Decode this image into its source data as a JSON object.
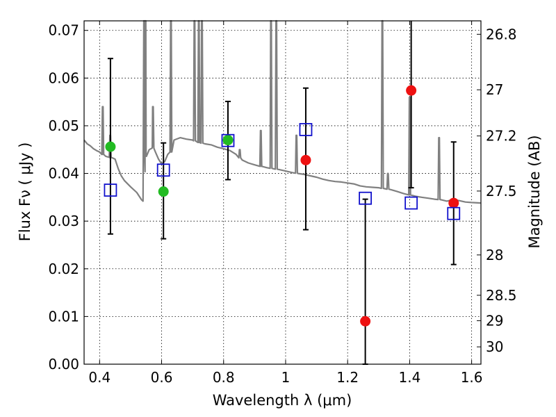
{
  "chart_data": {
    "type": "scatter",
    "xlabel": "Wavelength  λ (μm)",
    "ylabel": "Flux  Fν  ( μJy )",
    "ylabel_right": "Magnitude (AB)",
    "xlim": [
      0.35,
      1.63
    ],
    "ylim": [
      0.0,
      0.072
    ],
    "grid": true,
    "x_ticks": [
      0.4,
      0.6,
      0.8,
      1.0,
      1.2,
      1.4,
      1.6
    ],
    "x_tick_labels": [
      "0.4",
      "0.6",
      "0.8",
      "1",
      "1.2",
      "1.4",
      "1.6"
    ],
    "y_ticks": [
      0.0,
      0.01,
      0.02,
      0.03,
      0.04,
      0.05,
      0.06,
      0.07
    ],
    "y_tick_labels": [
      "0.00",
      "0.01",
      "0.02",
      "0.03",
      "0.04",
      "0.05",
      "0.06",
      "0.07"
    ],
    "right_ticks": [
      {
        "label": "26.8",
        "mag": 26.8
      },
      {
        "label": "27",
        "mag": 27.0
      },
      {
        "label": "27.2",
        "mag": 27.2
      },
      {
        "label": "27.5",
        "mag": 27.5
      },
      {
        "label": "28",
        "mag": 28.0
      },
      {
        "label": "28.5",
        "mag": 28.5
      },
      {
        "label": "29",
        "mag": 29.0
      },
      {
        "label": "30",
        "mag": 30.0
      }
    ],
    "series": [
      {
        "marker": "circle",
        "color": "#22bb22",
        "points": [
          {
            "x": 0.435,
            "y": 0.0456
          },
          {
            "x": 0.606,
            "y": 0.0362
          },
          {
            "x": 0.814,
            "y": 0.047
          }
        ]
      },
      {
        "marker": "circle",
        "color": "#ee1111",
        "points": [
          {
            "x": 1.065,
            "y": 0.0428
          },
          {
            "x": 1.257,
            "y": 0.009
          },
          {
            "x": 1.405,
            "y": 0.0574
          },
          {
            "x": 1.542,
            "y": 0.0338
          }
        ]
      },
      {
        "marker": "open-square",
        "color": "#1111cc",
        "points": [
          {
            "x": 0.435,
            "y": 0.0365
          },
          {
            "x": 0.606,
            "y": 0.0407
          },
          {
            "x": 0.814,
            "y": 0.0469
          },
          {
            "x": 1.065,
            "y": 0.0492
          },
          {
            "x": 1.257,
            "y": 0.0348
          },
          {
            "x": 1.405,
            "y": 0.0338
          },
          {
            "x": 1.542,
            "y": 0.0316
          }
        ]
      }
    ],
    "error_bars": [
      {
        "x": 0.435,
        "low": 0.0273,
        "high": 0.0641
      },
      {
        "x": 0.606,
        "low": 0.0263,
        "high": 0.0464
      },
      {
        "x": 0.814,
        "low": 0.0387,
        "high": 0.0551
      },
      {
        "x": 1.065,
        "low": 0.0282,
        "high": 0.0579
      },
      {
        "x": 1.257,
        "low": 0.0,
        "high": 0.0346
      },
      {
        "x": 1.405,
        "low": 0.037,
        "high": 0.072
      },
      {
        "x": 1.542,
        "low": 0.0209,
        "high": 0.0466
      }
    ],
    "model_spectrum": {
      "color": "#808080",
      "points": [
        [
          0.35,
          0.047
        ],
        [
          0.36,
          0.0462
        ],
        [
          0.37,
          0.0458
        ],
        [
          0.38,
          0.0452
        ],
        [
          0.39,
          0.0448
        ],
        [
          0.4,
          0.0445
        ],
        [
          0.41,
          0.044
        ],
        [
          0.42,
          0.0436
        ],
        [
          0.43,
          0.0434
        ],
        [
          0.44,
          0.0433
        ],
        [
          0.45,
          0.043
        ],
        [
          0.46,
          0.041
        ],
        [
          0.47,
          0.0395
        ],
        [
          0.48,
          0.0385
        ],
        [
          0.5,
          0.0372
        ],
        [
          0.52,
          0.036
        ],
        [
          0.53,
          0.035
        ],
        [
          0.535,
          0.0345
        ],
        [
          0.54,
          0.0342
        ],
        [
          0.545,
          0.043
        ],
        [
          0.55,
          0.044
        ],
        [
          0.56,
          0.045
        ],
        [
          0.57,
          0.0455
        ],
        [
          0.58,
          0.0445
        ],
        [
          0.59,
          0.043
        ],
        [
          0.6,
          0.042
        ],
        [
          0.61,
          0.0425
        ],
        [
          0.62,
          0.044
        ],
        [
          0.63,
          0.0445
        ],
        [
          0.64,
          0.047
        ],
        [
          0.66,
          0.0475
        ],
        [
          0.68,
          0.0472
        ],
        [
          0.7,
          0.047
        ],
        [
          0.72,
          0.0465
        ],
        [
          0.74,
          0.0462
        ],
        [
          0.76,
          0.046
        ],
        [
          0.78,
          0.0455
        ],
        [
          0.8,
          0.0452
        ],
        [
          0.82,
          0.0448
        ],
        [
          0.84,
          0.044
        ],
        [
          0.86,
          0.0428
        ],
        [
          0.88,
          0.0422
        ],
        [
          0.9,
          0.0418
        ],
        [
          0.92,
          0.0415
        ],
        [
          0.94,
          0.0412
        ],
        [
          0.96,
          0.041
        ],
        [
          0.98,
          0.0408
        ],
        [
          1.0,
          0.0405
        ],
        [
          1.02,
          0.0402
        ],
        [
          1.04,
          0.04
        ],
        [
          1.06,
          0.0398
        ],
        [
          1.08,
          0.0395
        ],
        [
          1.1,
          0.0392
        ],
        [
          1.12,
          0.0388
        ],
        [
          1.14,
          0.0385
        ],
        [
          1.16,
          0.0383
        ],
        [
          1.18,
          0.0382
        ],
        [
          1.2,
          0.038
        ],
        [
          1.22,
          0.0378
        ],
        [
          1.24,
          0.0374
        ],
        [
          1.26,
          0.0372
        ],
        [
          1.28,
          0.0371
        ],
        [
          1.3,
          0.037
        ],
        [
          1.32,
          0.0368
        ],
        [
          1.34,
          0.0366
        ],
        [
          1.36,
          0.0362
        ],
        [
          1.38,
          0.0358
        ],
        [
          1.4,
          0.0355
        ],
        [
          1.42,
          0.0352
        ],
        [
          1.44,
          0.035
        ],
        [
          1.46,
          0.0348
        ],
        [
          1.48,
          0.0346
        ],
        [
          1.5,
          0.0345
        ],
        [
          1.52,
          0.0342
        ],
        [
          1.54,
          0.0345
        ],
        [
          1.56,
          0.0343
        ],
        [
          1.58,
          0.034
        ],
        [
          1.6,
          0.0339
        ],
        [
          1.63,
          0.0338
        ]
      ],
      "emission_lines": [
        {
          "x": 0.4102,
          "peak": 0.054
        },
        {
          "x": 0.4342,
          "peak": 0.048
        },
        {
          "x": 0.5435,
          "peak": 0.072
        },
        {
          "x": 0.548,
          "peak": 0.072
        },
        {
          "x": 0.572,
          "peak": 0.054
        },
        {
          "x": 0.63,
          "peak": 0.072
        },
        {
          "x": 0.706,
          "peak": 0.072
        },
        {
          "x": 0.72,
          "peak": 0.072
        },
        {
          "x": 0.73,
          "peak": 0.072
        },
        {
          "x": 0.852,
          "peak": 0.045
        },
        {
          "x": 0.92,
          "peak": 0.049
        },
        {
          "x": 0.953,
          "peak": 0.072
        },
        {
          "x": 0.97,
          "peak": 0.072
        },
        {
          "x": 1.035,
          "peak": 0.048
        },
        {
          "x": 1.312,
          "peak": 0.072
        },
        {
          "x": 1.33,
          "peak": 0.04
        },
        {
          "x": 1.4,
          "peak": 0.056
        },
        {
          "x": 1.495,
          "peak": 0.0475
        }
      ]
    }
  }
}
